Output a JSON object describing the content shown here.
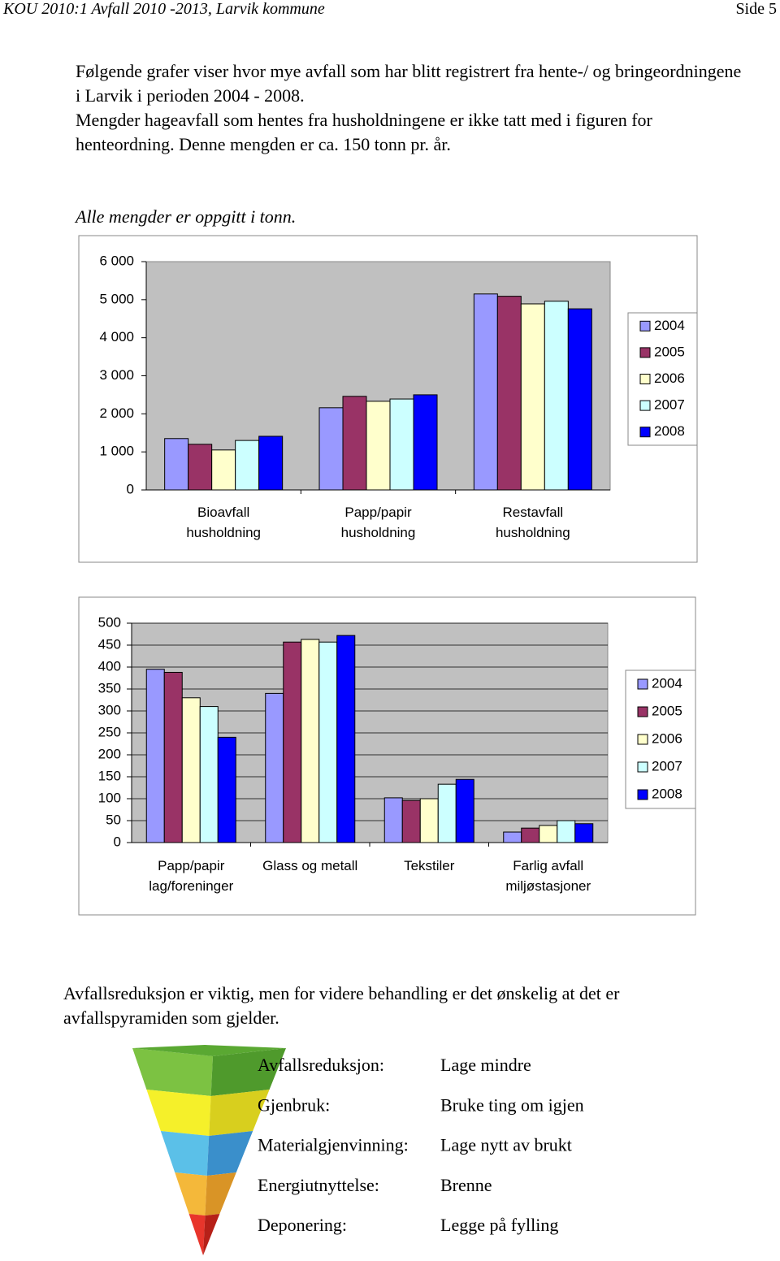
{
  "header": {
    "title": "KOU 2010:1 Avfall 2010 -2013, Larvik kommune",
    "page": "Side 5"
  },
  "intro": [
    "Følgende grafer viser hvor mye avfall som har blitt registrert fra hente-/ og bringeordningene i Larvik i perioden 2004 - 2008.",
    "Mengder hageavfall som hentes fra husholdningene er ikke tatt med i figuren for henteordning. Denne mengden er ca. 150 tonn pr. år."
  ],
  "note": "Alle mengder er oppgitt i tonn.",
  "chart_data": [
    {
      "type": "bar",
      "categories": [
        "Bioavfall\nhusholdning",
        "Papp/papir\nhusholdning",
        "Restavfall\nhusholdning"
      ],
      "series": [
        {
          "name": "2004",
          "color": "#9999ff",
          "values": [
            1350,
            2160,
            5150
          ]
        },
        {
          "name": "2005",
          "color": "#993366",
          "values": [
            1200,
            2460,
            5090
          ]
        },
        {
          "name": "2006",
          "color": "#ffffcc",
          "values": [
            1050,
            2330,
            4890
          ]
        },
        {
          "name": "2007",
          "color": "#ccffff",
          "values": [
            1300,
            2390,
            4960
          ]
        },
        {
          "name": "2008",
          "color": "#0000ff",
          "values": [
            1410,
            2500,
            4760
          ]
        }
      ],
      "ylim": [
        0,
        6000
      ],
      "yticks": [
        0,
        {
          "value": 1000,
          "label": "1 000"
        },
        {
          "value": 2000,
          "label": "2 000"
        },
        {
          "value": 3000,
          "label": "3 000"
        },
        {
          "value": 4000,
          "label": "4 000"
        },
        {
          "value": 5000,
          "label": "5 000"
        },
        {
          "value": 6000,
          "label": "6 000"
        }
      ],
      "grid": false,
      "legend": "right"
    },
    {
      "type": "bar",
      "categories": [
        "Papp/papir\nlag/foreninger",
        "Glass og metall",
        "Tekstiler",
        "Farlig avfall\nmiljøstasjoner"
      ],
      "series": [
        {
          "name": "2004",
          "color": "#9999ff",
          "values": [
            395,
            340,
            102,
            24
          ]
        },
        {
          "name": "2005",
          "color": "#993366",
          "values": [
            388,
            457,
            96,
            33
          ]
        },
        {
          "name": "2006",
          "color": "#ffffcc",
          "values": [
            330,
            463,
            100,
            39
          ]
        },
        {
          "name": "2007",
          "color": "#ccffff",
          "values": [
            310,
            457,
            133,
            50
          ]
        },
        {
          "name": "2008",
          "color": "#0000ff",
          "values": [
            240,
            472,
            144,
            43
          ]
        }
      ],
      "ylim": [
        0,
        500
      ],
      "yticks": [
        0,
        50,
        100,
        150,
        200,
        250,
        300,
        350,
        400,
        450,
        500
      ],
      "grid": true,
      "legend": "right"
    }
  ],
  "outro": "Avfallsreduksjon er viktig, men for videre behandling er det ønskelig at det er avfallspyramiden som gjelder.",
  "pyramid": [
    {
      "level": "Avfallsreduksjon:",
      "description": "Lage mindre"
    },
    {
      "level": "Gjenbruk:",
      "description": "Bruke ting om igjen"
    },
    {
      "level": "Materialgjenvinning:",
      "description": "Lage nytt av brukt"
    },
    {
      "level": "Energiutnyttelse:",
      "description": "Brenne"
    },
    {
      "level": "Deponering:",
      "description": "Legge på fylling"
    }
  ]
}
